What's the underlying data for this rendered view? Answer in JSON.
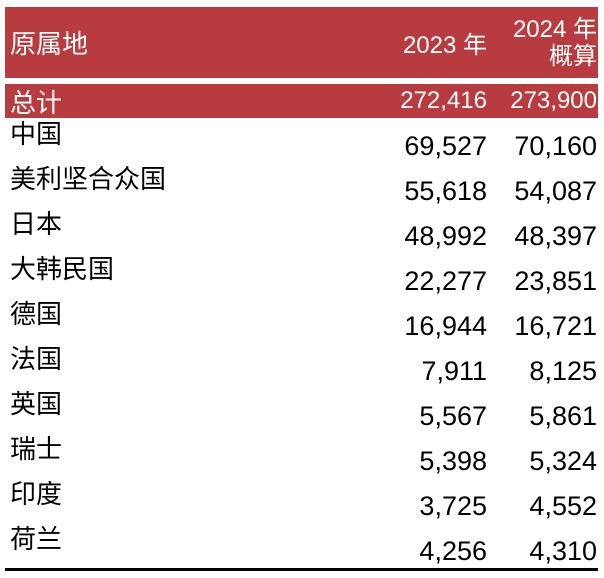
{
  "table": {
    "header": {
      "origin": "原属地",
      "y2023": "2023 年",
      "y2024_line1": "2024 年",
      "y2024_line2": "概算"
    },
    "total": {
      "label": "总计",
      "v2023": "272,416",
      "v2024": "273,900"
    },
    "rows": [
      {
        "label": "中国",
        "v2023": "69,527",
        "v2024": "70,160"
      },
      {
        "label": "美利坚合众国",
        "v2023": "55,618",
        "v2024": "54,087"
      },
      {
        "label": "日本",
        "v2023": "48,992",
        "v2024": "48,397"
      },
      {
        "label": "大韩民国",
        "v2023": "22,277",
        "v2024": "23,851"
      },
      {
        "label": "德国",
        "v2023": "16,944",
        "v2024": "16,721"
      },
      {
        "label": "法国",
        "v2023": "7,911",
        "v2024": "8,125"
      },
      {
        "label": "英国",
        "v2023": "5,567",
        "v2024": "5,861"
      },
      {
        "label": "瑞士",
        "v2023": "5,398",
        "v2024": "5,324"
      },
      {
        "label": "印度",
        "v2023": "3,725",
        "v2024": "4,552"
      },
      {
        "label": "荷兰",
        "v2023": "4,256",
        "v2024": "4,310"
      }
    ],
    "colors": {
      "band_red": "#B73B3F",
      "header_text": "#FFFFFF",
      "body_text": "#000000",
      "bottom_rule": "#000000"
    }
  },
  "chart_data": {
    "type": "table",
    "columns": [
      "原属地",
      "2023 年",
      "2024 年 概算"
    ],
    "rows": [
      [
        "总计",
        272416,
        273900
      ],
      [
        "中国",
        69527,
        70160
      ],
      [
        "美利坚合众国",
        55618,
        54087
      ],
      [
        "日本",
        48992,
        48397
      ],
      [
        "大韩民国",
        22277,
        23851
      ],
      [
        "德国",
        16944,
        16721
      ],
      [
        "法国",
        7911,
        8125
      ],
      [
        "英国",
        5567,
        5861
      ],
      [
        "瑞士",
        5398,
        5324
      ],
      [
        "印度",
        3725,
        4552
      ],
      [
        "荷兰",
        4256,
        4310
      ]
    ]
  }
}
